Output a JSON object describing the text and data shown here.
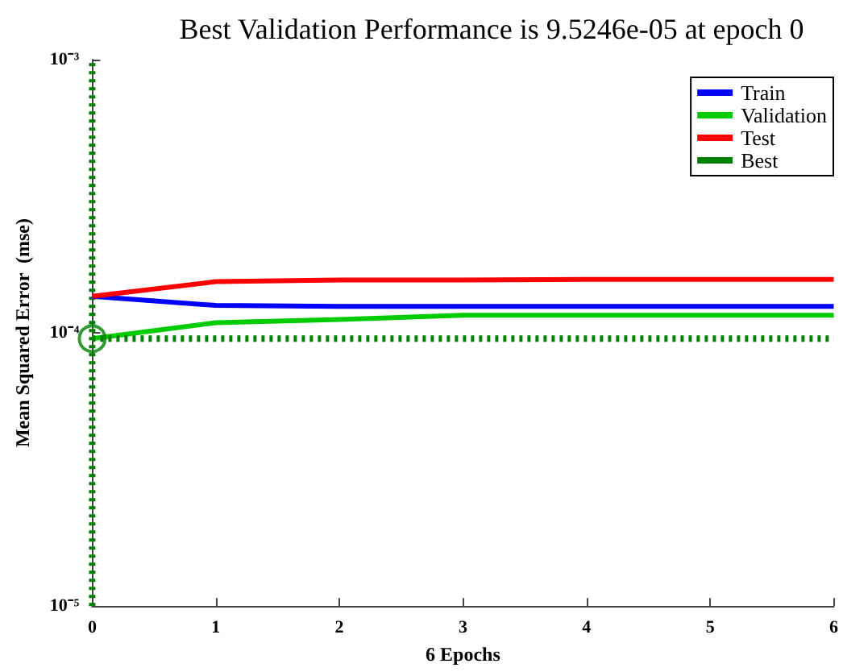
{
  "chart_data": {
    "type": "line",
    "title": "Best Validation Performance is 9.5246e-05 at epoch 0",
    "xlabel": "6 Epochs",
    "ylabel": "Mean Squared Error  (mse)",
    "series": [
      {
        "name": "Train",
        "color": "#0000ff",
        "x": [
          0,
          1,
          2,
          3,
          4,
          5,
          6
        ],
        "values": [
          0.000136,
          0.000126,
          0.000125,
          0.000125,
          0.000125,
          0.000125,
          0.000125
        ]
      },
      {
        "name": "Validation",
        "color": "#00cc00",
        "x": [
          0,
          1,
          2,
          3,
          4,
          5,
          6
        ],
        "values": [
          9.5246e-05,
          0.000109,
          0.000112,
          0.000116,
          0.000116,
          0.000116,
          0.000116
        ]
      },
      {
        "name": "Test",
        "color": "#ff0000",
        "x": [
          0,
          1,
          2,
          3,
          4,
          5,
          6
        ],
        "values": [
          0.000136,
          0.000154,
          0.000156,
          0.000156,
          0.000157,
          0.000157,
          0.000157
        ]
      },
      {
        "name": "Best",
        "color": "#007f00",
        "line_style": "dotted",
        "marker": "none",
        "x": [
          0,
          6
        ],
        "values": [
          9.5246e-05,
          9.5246e-05
        ]
      },
      {
        "type": "scatter",
        "color": "#007f00",
        "marker": "circle",
        "x": [
          0
        ],
        "values": [
          9.5246e-05
        ]
      }
    ],
    "ref_lines": [
      {
        "axis": "x",
        "value": 0,
        "color": "#007f00",
        "line_style": "dotted"
      }
    ],
    "xlim": [
      0,
      6
    ],
    "xticks": [
      0,
      1,
      2,
      3,
      4,
      5,
      6
    ],
    "ylim": [
      1e-05,
      0.001
    ],
    "yticks": [
      {
        "value": 1e-05,
        "label": "10⁻⁵"
      },
      {
        "value": 0.0001,
        "label": "10⁻⁴"
      },
      {
        "value": 0.001,
        "label": "10⁻³"
      }
    ],
    "log": "y",
    "grid": false,
    "legend": "top right",
    "marker": "none",
    "line_style": "solid"
  }
}
